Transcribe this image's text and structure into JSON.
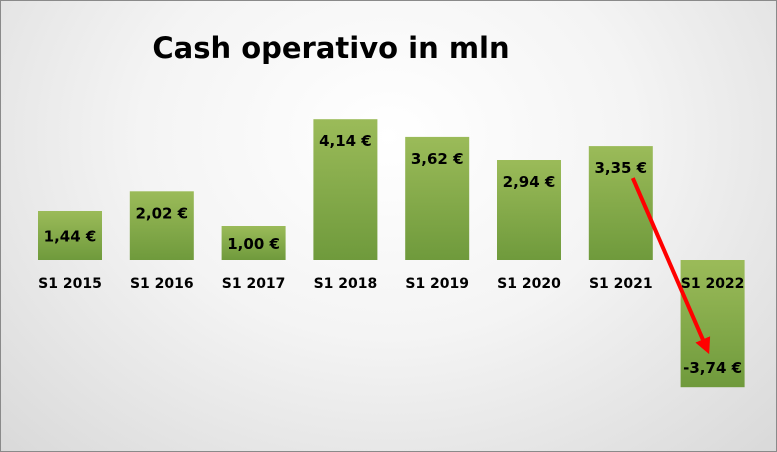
{
  "chart_data": {
    "type": "bar",
    "title": "Cash operativo in mln",
    "categories": [
      "S1 2015",
      "S1 2016",
      "S1 2017",
      "S1 2018",
      "S1 2019",
      "S1 2020",
      "S1 2021",
      "S1 2022"
    ],
    "values": [
      1.44,
      2.02,
      1.0,
      4.14,
      3.62,
      2.94,
      3.35,
      -3.74
    ],
    "value_labels": [
      "1,44 €",
      "2,02 €",
      "1,00 €",
      "4,14 €",
      "3,62 €",
      "2,94 €",
      "3,35 €",
      "-3,74 €"
    ],
    "xlabel": "",
    "ylabel": "",
    "grid": false,
    "legend": "none",
    "annotations": [
      {
        "type": "arrow",
        "from_category": "S1 2021",
        "to_category": "S1 2022",
        "color": "#ff0000"
      }
    ],
    "colors": {
      "bar_top": "#9bbb59",
      "bar_bottom": "#6f9a3c",
      "arrow": "#ff0000"
    }
  }
}
